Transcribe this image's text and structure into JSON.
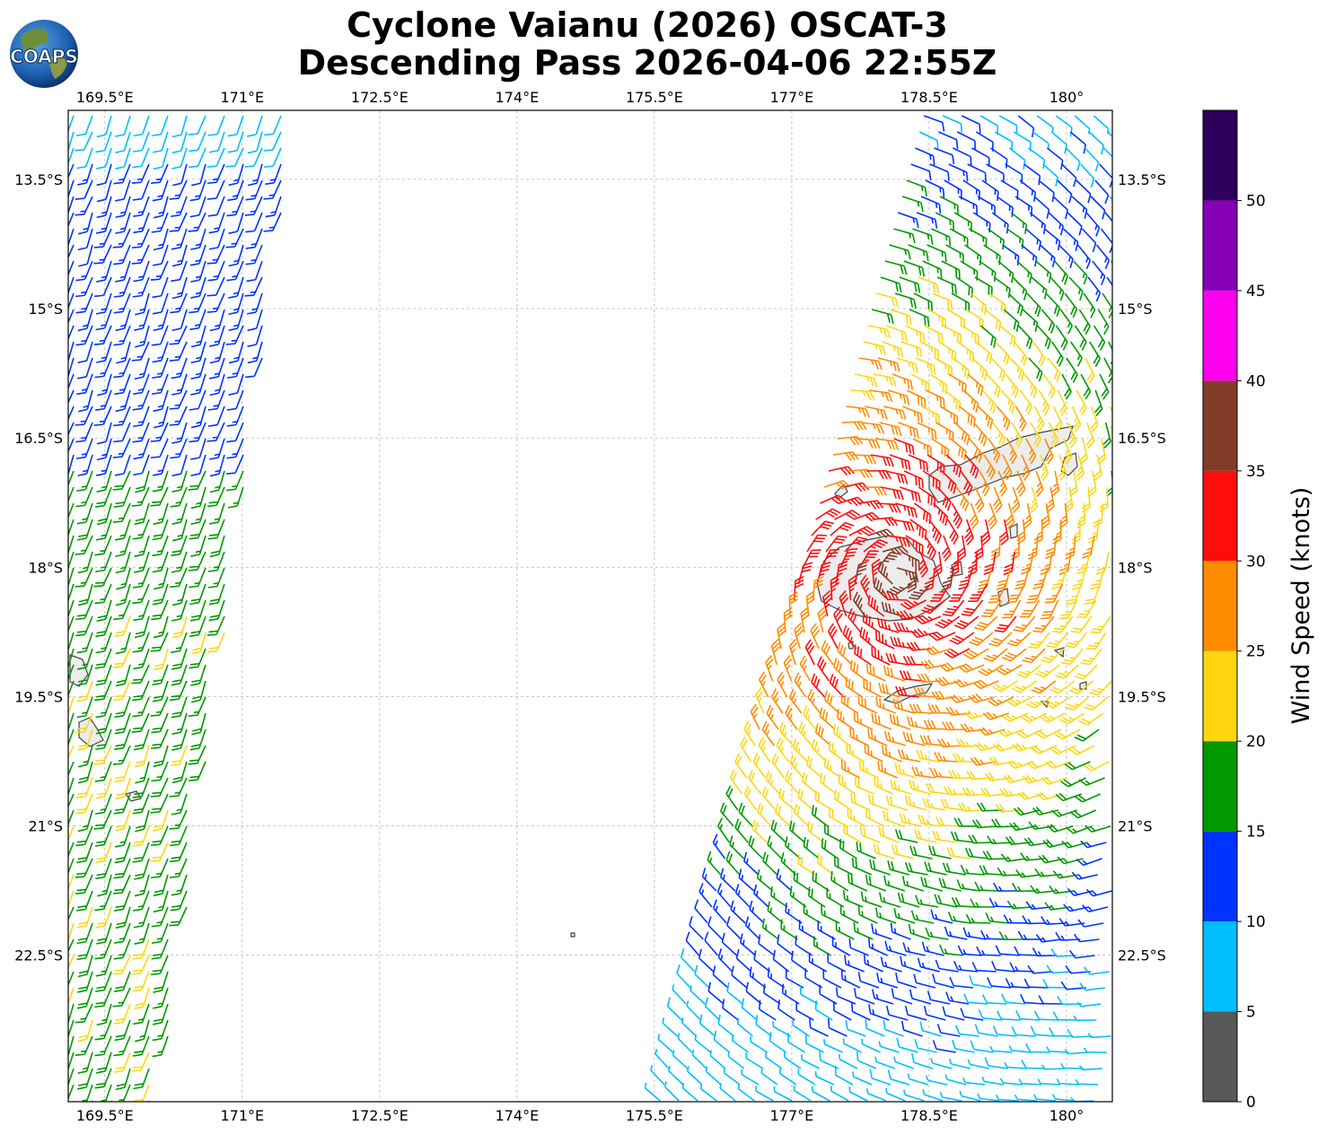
{
  "title": {
    "line1": "Cyclone Vaianu (2026) OSCAT-3",
    "line2": "Descending Pass 2026-04-06 22:55Z"
  },
  "logo": {
    "text": "COAPS",
    "icon": "globe-logo-icon"
  },
  "map": {
    "lon_range": [
      169.1,
      180.5
    ],
    "lat_range": [
      -24.2,
      -12.7
    ],
    "lon_ticks": [
      {
        "value": 169.5,
        "label": "169.5°E"
      },
      {
        "value": 171,
        "label": "171°E"
      },
      {
        "value": 172.5,
        "label": "172.5°E"
      },
      {
        "value": 174,
        "label": "174°E"
      },
      {
        "value": 175.5,
        "label": "175.5°E"
      },
      {
        "value": 177,
        "label": "177°E"
      },
      {
        "value": 178.5,
        "label": "178.5°E"
      },
      {
        "value": 180,
        "label": "180°"
      }
    ],
    "lat_ticks": [
      {
        "value": -13.5,
        "label": "13.5°S"
      },
      {
        "value": -15,
        "label": "15°S"
      },
      {
        "value": -16.5,
        "label": "16.5°S"
      },
      {
        "value": -18,
        "label": "18°S"
      },
      {
        "value": -19.5,
        "label": "19.5°S"
      },
      {
        "value": -21,
        "label": "21°S"
      },
      {
        "value": -22.5,
        "label": "22.5°S"
      }
    ],
    "grid": true,
    "land_color": "#ececec",
    "coast_color": "#444444"
  },
  "colorbar": {
    "label": "Wind Speed (knots)",
    "bins": [
      {
        "min": 0,
        "max": 5,
        "color": "#595959"
      },
      {
        "min": 5,
        "max": 10,
        "color": "#00bfff"
      },
      {
        "min": 10,
        "max": 15,
        "color": "#0033ff"
      },
      {
        "min": 15,
        "max": 20,
        "color": "#009900"
      },
      {
        "min": 20,
        "max": 25,
        "color": "#ffd711"
      },
      {
        "min": 25,
        "max": 30,
        "color": "#ff8c00"
      },
      {
        "min": 30,
        "max": 35,
        "color": "#ff0d0d"
      },
      {
        "min": 35,
        "max": 40,
        "color": "#833c28"
      },
      {
        "min": 40,
        "max": 45,
        "color": "#ff00ee"
      },
      {
        "min": 45,
        "max": 50,
        "color": "#8600b8"
      },
      {
        "min": 50,
        "max": 55,
        "color": "#2d005b"
      }
    ],
    "tick_values": [
      0,
      5,
      10,
      15,
      20,
      25,
      30,
      35,
      40,
      45,
      50
    ]
  },
  "swaths": [
    {
      "name": "west",
      "lon_top": [
        169.1,
        171.6
      ],
      "lon_bottom": [
        169.1,
        170.1
      ]
    },
    {
      "name": "east",
      "lon_top": [
        178.4,
        180.5
      ],
      "lon_bottom": [
        175.5,
        180.5
      ]
    }
  ]
}
